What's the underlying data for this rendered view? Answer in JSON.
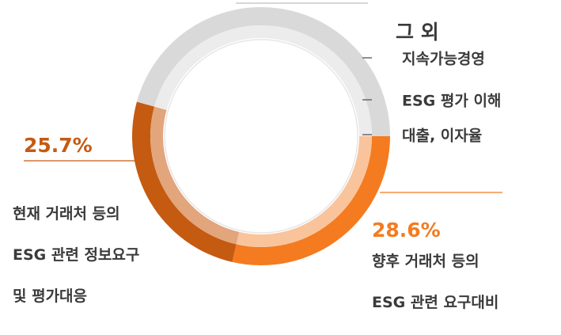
{
  "chart_data": {
    "type": "donut",
    "categories": [
      "향후 거래처 등의\nESG 관련 요구대비",
      "현재 거래처 등의\nESG 관련 정보요구\n및 평가대응",
      "그 외"
    ],
    "values": [
      28.6,
      25.7,
      45.7
    ],
    "value_labels": [
      "28.6%",
      "25.7%",
      null
    ],
    "colors": [
      "#f47b20",
      "#c55a11",
      "#d9d9d9"
    ],
    "inner_colors": [
      "#f9c49c",
      "#e2a57c",
      "#ececec"
    ],
    "other_items": [
      "지속가능경영",
      "ESG 평가 이해",
      "대출, 이자율"
    ]
  }
}
